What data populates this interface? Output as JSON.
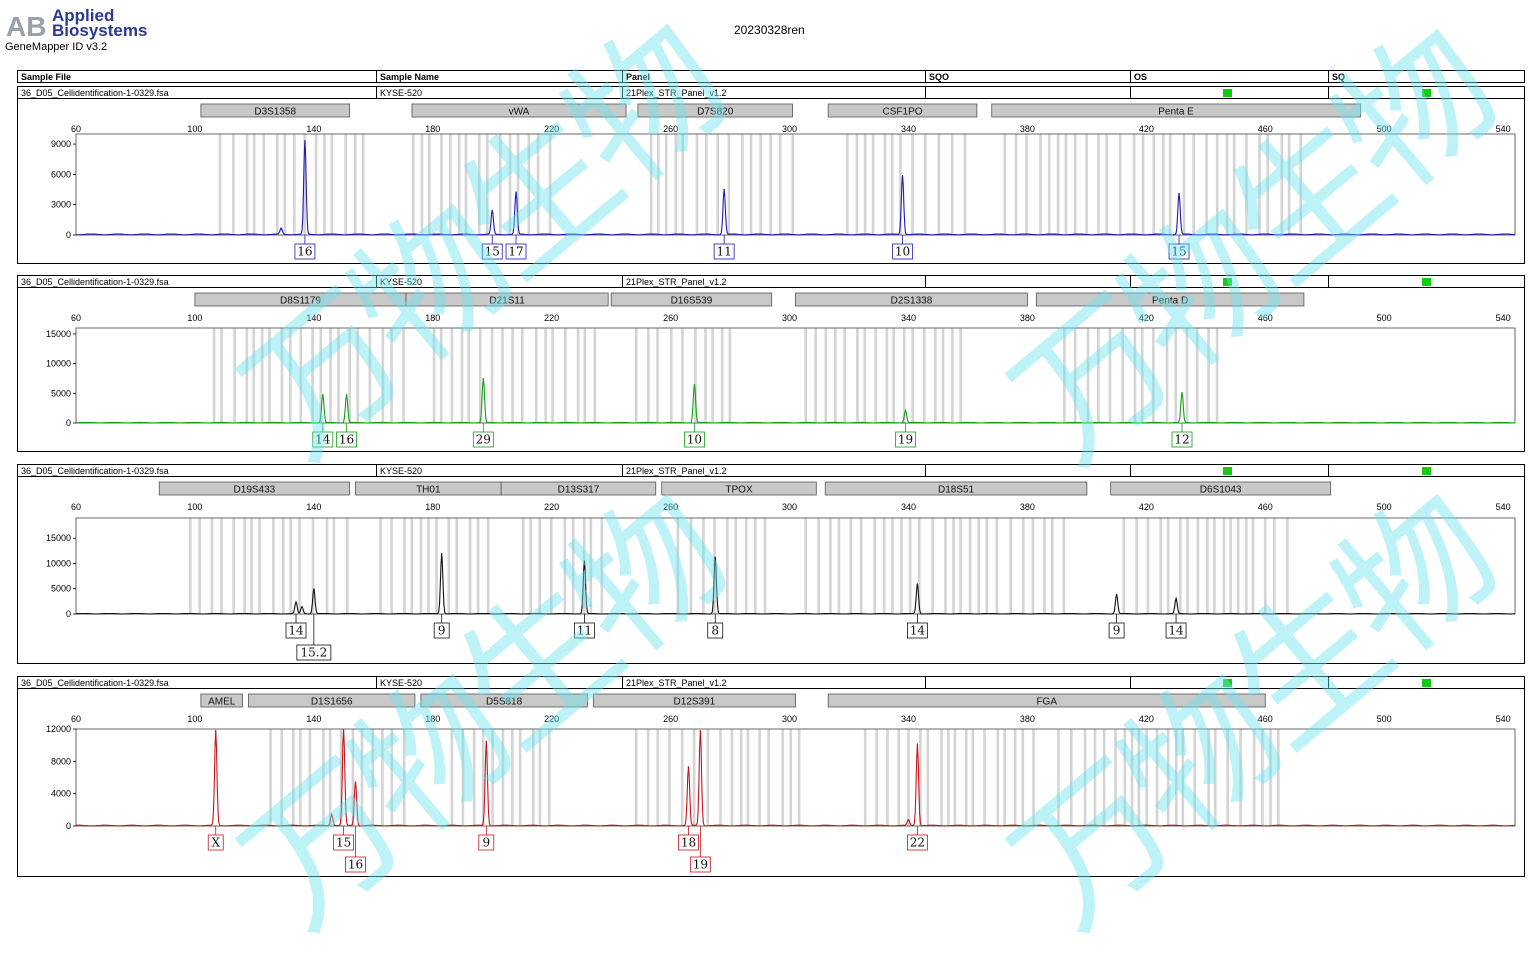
{
  "app": {
    "logo_letters": "AB",
    "logo_line1": "Applied",
    "logo_line2": "Biosystems",
    "version": "GeneMapper ID v3.2"
  },
  "run_title": "20230328ren",
  "header": {
    "sample_file": "Sample File",
    "sample_name": "Sample Name",
    "panel": "Panel",
    "sqo": "SQO",
    "os": "OS",
    "sq": "SQ"
  },
  "watermark_text": "万物生物",
  "colors": {
    "blue": "#1a1ab8",
    "green": "#13a013",
    "black": "#111111",
    "red": "#c8141e",
    "ok": "#12cc12",
    "bin": "#d4d4d4",
    "locus": "#c8c8c8"
  },
  "chart_data": [
    {
      "type": "line",
      "dye": "blue",
      "sample_file": "36_D05_Cellidentification-1-0329.fsa",
      "sample_name": "KYSE-520",
      "panel": "21Plex_STR_Panel_v1.2",
      "xlim": [
        60,
        544
      ],
      "x_ticks": [
        60,
        100,
        140,
        180,
        220,
        260,
        300,
        340,
        380,
        420,
        460,
        500,
        540
      ],
      "ylim": [
        0,
        10000
      ],
      "y_ticks": [
        0,
        3000,
        6000,
        9000
      ],
      "loci": [
        {
          "name": "D3S1358",
          "start": 102,
          "end": 152
        },
        {
          "name": "vWA",
          "start": 173,
          "end": 245
        },
        {
          "name": "D7S820",
          "start": 249,
          "end": 301
        },
        {
          "name": "CSF1PO",
          "start": 313,
          "end": 363
        },
        {
          "name": "Penta E",
          "start": 368,
          "end": 492
        }
      ],
      "bin_ranges": [
        [
          108,
          159
        ],
        [
          173,
          222
        ],
        [
          253,
          301
        ],
        [
          319,
          359
        ],
        [
          372,
          475
        ]
      ],
      "peaks": [
        {
          "x": 137,
          "h": 9300,
          "label": "16",
          "ly": 0
        },
        {
          "x": 129,
          "h": 600,
          "label": "",
          "ly": 0
        },
        {
          "x": 200,
          "h": 2400,
          "label": "15",
          "ly": 0
        },
        {
          "x": 208,
          "h": 4200,
          "label": "17",
          "ly": 0
        },
        {
          "x": 278,
          "h": 4500,
          "label": "11",
          "ly": 0
        },
        {
          "x": 338,
          "h": 5900,
          "label": "10",
          "ly": 0
        },
        {
          "x": 431,
          "h": 4100,
          "label": "15",
          "ly": 0
        }
      ]
    },
    {
      "type": "line",
      "dye": "green",
      "sample_file": "36_D05_Cellidentification-1-0329.fsa",
      "sample_name": "KYSE-520",
      "panel": "21Plex_STR_Panel_v1.2",
      "xlim": [
        60,
        544
      ],
      "x_ticks": [
        60,
        100,
        140,
        180,
        220,
        260,
        300,
        340,
        380,
        420,
        460,
        500,
        540
      ],
      "ylim": [
        0,
        16000
      ],
      "y_ticks": [
        0,
        5000,
        10000,
        15000
      ],
      "loci": [
        {
          "name": "D8S1179",
          "start": 100,
          "end": 171
        },
        {
          "name": "D21S11",
          "start": 171,
          "end": 239
        },
        {
          "name": "D16S539",
          "start": 240,
          "end": 294
        },
        {
          "name": "D2S1338",
          "start": 302,
          "end": 380
        },
        {
          "name": "Penta D",
          "start": 383,
          "end": 473
        }
      ],
      "bin_ranges": [
        [
          106,
          170
        ],
        [
          180,
          236
        ],
        [
          248,
          283
        ],
        [
          305,
          360
        ],
        [
          392,
          444
        ]
      ],
      "peaks": [
        {
          "x": 143,
          "h": 4800,
          "label": "14",
          "ly": 0
        },
        {
          "x": 151,
          "h": 4800,
          "label": "16",
          "ly": 0
        },
        {
          "x": 197,
          "h": 7500,
          "label": "29",
          "ly": 0
        },
        {
          "x": 268,
          "h": 6500,
          "label": "10",
          "ly": 0
        },
        {
          "x": 339,
          "h": 2100,
          "label": "19",
          "ly": 0
        },
        {
          "x": 432,
          "h": 5100,
          "label": "12",
          "ly": 0
        }
      ]
    },
    {
      "type": "line",
      "dye": "black",
      "sample_file": "36_D05_Cellidentification-1-0329.fsa",
      "sample_name": "KYSE-520",
      "panel": "21Plex_STR_Panel_v1.2",
      "xlim": [
        60,
        544
      ],
      "x_ticks": [
        60,
        100,
        140,
        180,
        220,
        260,
        300,
        340,
        380,
        420,
        460,
        500,
        540
      ],
      "ylim": [
        0,
        19000
      ],
      "y_ticks": [
        0,
        5000,
        10000,
        15000
      ],
      "loci": [
        {
          "name": "D19S433",
          "start": 88,
          "end": 152
        },
        {
          "name": "TH01",
          "start": 154,
          "end": 203
        },
        {
          "name": "D13S317",
          "start": 203,
          "end": 255
        },
        {
          "name": "TPOX",
          "start": 257,
          "end": 309
        },
        {
          "name": "D18S51",
          "start": 312,
          "end": 400
        },
        {
          "name": "D6S1043",
          "start": 408,
          "end": 482
        }
      ],
      "bin_ranges": [
        [
          98,
          152
        ],
        [
          162,
          200
        ],
        [
          210,
          240
        ],
        [
          262,
          295
        ],
        [
          305,
          395
        ],
        [
          412,
          467
        ]
      ],
      "peaks": [
        {
          "x": 134,
          "h": 2300,
          "label": "14",
          "ly": 0
        },
        {
          "x": 140,
          "h": 5000,
          "label": "15.2",
          "ly": 1
        },
        {
          "x": 136,
          "h": 1400,
          "label": "",
          "ly": 0
        },
        {
          "x": 183,
          "h": 12000,
          "label": "9",
          "ly": 0
        },
        {
          "x": 231,
          "h": 10500,
          "label": "11",
          "ly": 0
        },
        {
          "x": 275,
          "h": 11300,
          "label": "8",
          "ly": 0
        },
        {
          "x": 343,
          "h": 6000,
          "label": "14",
          "ly": 0
        },
        {
          "x": 410,
          "h": 3900,
          "label": "9",
          "ly": 0
        },
        {
          "x": 430,
          "h": 3000,
          "label": "14",
          "ly": 0
        }
      ]
    },
    {
      "type": "line",
      "dye": "red",
      "sample_file": "36_D05_Cellidentification-1-0329.fsa",
      "sample_name": "KYSE-520",
      "panel": "21Plex_STR_Panel_v1.2",
      "xlim": [
        60,
        544
      ],
      "x_ticks": [
        60,
        100,
        140,
        180,
        220,
        260,
        300,
        340,
        380,
        420,
        460,
        500,
        540
      ],
      "ylim": [
        0,
        12000
      ],
      "y_ticks": [
        0,
        4000,
        8000,
        12000
      ],
      "loci": [
        {
          "name": "AMEL",
          "start": 102,
          "end": 116
        },
        {
          "name": "D1S1656",
          "start": 118,
          "end": 174
        },
        {
          "name": "D5S818",
          "start": 176,
          "end": 232
        },
        {
          "name": "D12S391",
          "start": 234,
          "end": 302
        },
        {
          "name": "FGA",
          "start": 313,
          "end": 460
        }
      ],
      "bin_ranges": [
        [
          125,
          173
        ],
        [
          186,
          220
        ],
        [
          248,
          305
        ],
        [
          325,
          385
        ],
        [
          390,
          465
        ]
      ],
      "peaks": [
        {
          "x": 107,
          "h": 11800,
          "label": "X",
          "ly": 0
        },
        {
          "x": 150,
          "h": 12000,
          "label": "15",
          "ly": 0
        },
        {
          "x": 154,
          "h": 5500,
          "label": "16",
          "ly": 1
        },
        {
          "x": 146,
          "h": 1400,
          "label": "",
          "ly": 0
        },
        {
          "x": 198,
          "h": 10500,
          "label": "9",
          "ly": 0
        },
        {
          "x": 266,
          "h": 7300,
          "label": "18",
          "ly": 0
        },
        {
          "x": 270,
          "h": 11800,
          "label": "19",
          "ly": 1
        },
        {
          "x": 343,
          "h": 10200,
          "label": "22",
          "ly": 0
        },
        {
          "x": 340,
          "h": 700,
          "label": "",
          "ly": 0
        }
      ]
    }
  ]
}
